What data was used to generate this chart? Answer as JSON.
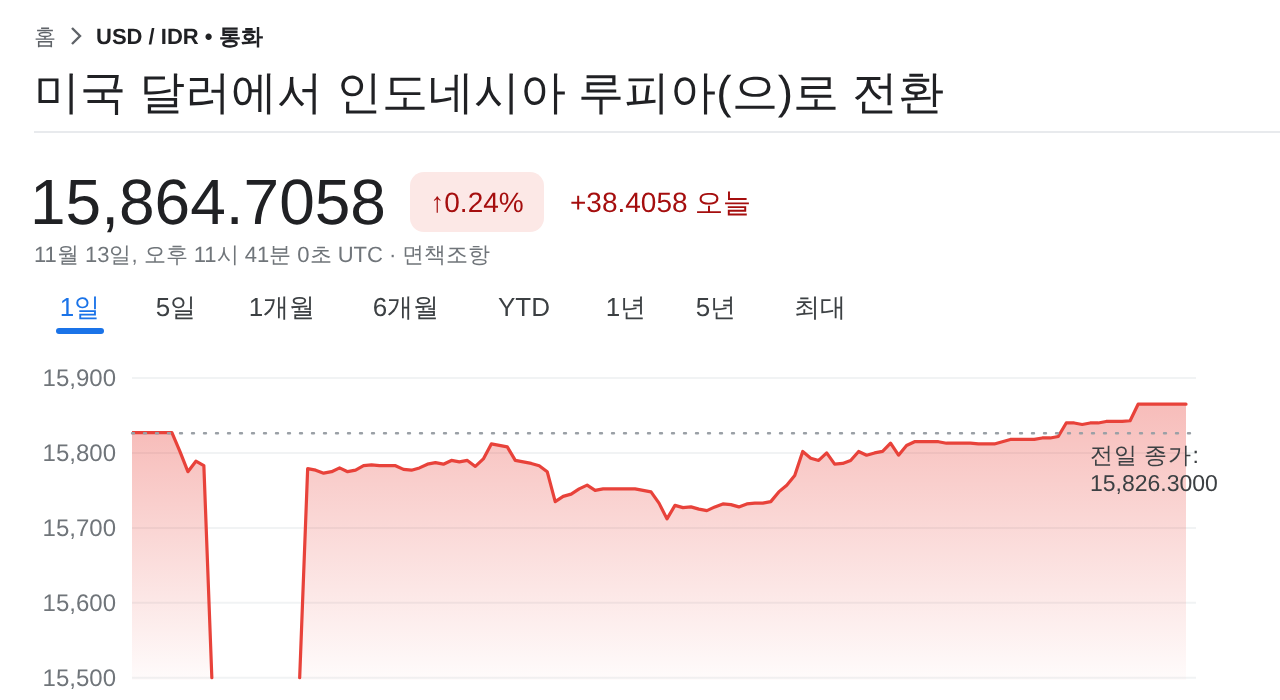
{
  "chart_data": {
    "type": "area",
    "title": "미국 달러에서 인도네시아 루피아(으)로 전환",
    "annotations": [
      "홈",
      "USD / IDR • 통화",
      "15,864.7058",
      "↑0.24%",
      "+38.4058 오늘",
      "11월 13일, 오후 11시 41분 0초 UTC · 면책조항",
      "1일",
      "5일",
      "1개월",
      "6개월",
      "YTD",
      "1년",
      "5년",
      "최대"
    ],
    "categories": [
      null,
      null,
      null,
      null,
      null,
      null,
      null,
      null,
      null,
      null,
      null,
      null,
      null,
      null,
      null,
      null,
      null,
      null,
      null,
      null,
      null,
      null,
      null,
      null,
      null,
      null,
      null,
      null,
      null,
      null,
      null,
      null,
      null,
      null,
      null,
      null,
      null,
      null,
      null,
      null,
      null,
      null,
      null,
      null,
      null,
      null,
      null,
      null,
      null,
      null,
      null,
      null,
      null,
      null,
      null,
      null,
      null,
      null,
      null,
      null,
      null,
      null,
      null,
      null,
      null,
      null,
      null,
      null,
      null,
      null,
      null,
      null,
      null,
      null,
      null,
      null,
      null,
      null,
      null,
      null,
      null,
      null,
      null,
      null,
      null,
      null,
      null,
      null,
      null,
      null,
      null,
      null,
      null,
      null,
      null,
      null,
      null,
      null,
      null,
      null,
      null,
      null,
      null,
      null,
      null,
      null,
      null,
      null,
      null,
      null,
      null,
      null,
      null,
      null,
      null,
      null,
      null,
      null,
      null,
      null,
      null,
      null,
      null,
      null,
      null,
      null,
      null,
      null,
      null,
      null,
      null,
      null,
      null
    ],
    "series": [
      {
        "color": "#e8423a",
        "values": [
          15827,
          15827,
          15827,
          15827,
          15827,
          15827,
          15802,
          15775,
          15789,
          15783,
          15500,
          null,
          null,
          null,
          null,
          null,
          null,
          null,
          null,
          null,
          null,
          null,
          null,
          null,
          null,
          null,
          null,
          null,
          null,
          null,
          null,
          null,
          null,
          null,
          null,
          null,
          null,
          null,
          null,
          null,
          null,
          null,
          null,
          null,
          null,
          null,
          null,
          null,
          null,
          null,
          null,
          null,
          null,
          null,
          null,
          null,
          null,
          null,
          null,
          null,
          null,
          null,
          null,
          null,
          null,
          null,
          null,
          null,
          null,
          null,
          null,
          null,
          null,
          null,
          null,
          null,
          null,
          null,
          null,
          null,
          null,
          null,
          null,
          null,
          null,
          null,
          null,
          null,
          null,
          null,
          null,
          null,
          null,
          null,
          null,
          null,
          null,
          null,
          null,
          null,
          null,
          null,
          null,
          null,
          null,
          null,
          null,
          null,
          null,
          null,
          null,
          null,
          null,
          null,
          null,
          null,
          null,
          null,
          null,
          null,
          null,
          null,
          null,
          null,
          null,
          null,
          null,
          null,
          null,
          null,
          null,
          null,
          null
        ]
      },
      {
        "color": "#e8423a",
        "values": [
          null,
          null,
          null,
          null,
          null,
          null,
          null,
          null,
          null,
          null,
          null,
          null,
          null,
          null,
          null,
          null,
          null,
          null,
          null,
          null,
          null,
          15500,
          15779,
          15777,
          15773,
          15775,
          15780,
          15775,
          15777,
          15783,
          15784,
          15783,
          15783,
          15783,
          15778,
          15777,
          15780,
          15785,
          15787,
          15785,
          15790,
          15788,
          15790,
          15782,
          15792,
          15812,
          15810,
          15808,
          15790,
          15788,
          15786,
          15783,
          15775,
          15735,
          15742,
          15745,
          15752,
          15757,
          15750,
          15752,
          15752,
          15752,
          15752,
          15752,
          15750,
          15748,
          15733,
          15712,
          15730,
          15727,
          15728,
          15725,
          15723,
          15728,
          15732,
          15731,
          15728,
          15732,
          15733,
          15733,
          15735,
          15748,
          15757,
          15770,
          15802,
          15793,
          15790,
          15800,
          15785,
          15786,
          15790,
          15802,
          15797,
          15800,
          15802,
          15813,
          15797,
          15810,
          15815,
          15815,
          15815,
          15815,
          15813,
          15813,
          15813,
          15813,
          15812,
          15812,
          15812,
          15815,
          15818,
          15818,
          15818,
          15818,
          15820,
          15820,
          15822,
          15840,
          15840,
          15838,
          15840,
          15840,
          15842,
          15842,
          15842,
          15843,
          15865,
          15865,
          15865,
          15865,
          15865,
          15865,
          15865
        ]
      }
    ],
    "ylim": [
      15497,
      15900
    ],
    "yticks": [
      {
        "value": 15900,
        "label": "15,900"
      },
      {
        "value": 15800,
        "label": "15,800"
      },
      {
        "value": 15700,
        "label": "15,700"
      },
      {
        "value": 15600,
        "label": "15,600"
      },
      {
        "value": 15500,
        "label": "15,500"
      }
    ],
    "tick_labels": "y",
    "grid": "y",
    "marker": "none",
    "line_style": "solid",
    "ref_lines": [
      {
        "axis": "y",
        "value": 15826.3,
        "label": "전일 종가: 15,826.3000",
        "line_style": "dotted",
        "color": "#9aa0a6"
      }
    ]
  }
}
